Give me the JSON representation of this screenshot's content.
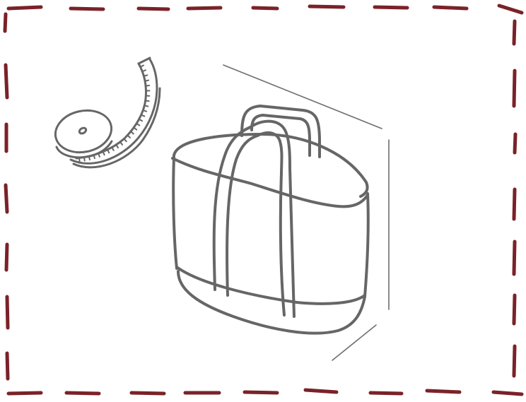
{
  "colors": {
    "background": "#ffffff",
    "stitch": "#7a2228",
    "line": "#666666",
    "guide": "#6e6e6e"
  },
  "icons": [
    "tape-measure-icon",
    "tote-bag-icon"
  ]
}
